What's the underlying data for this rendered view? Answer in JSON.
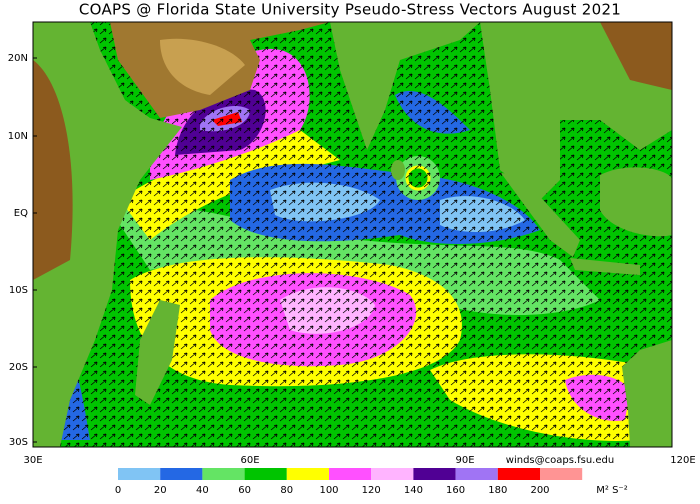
{
  "title": "COAPS @ Florida State University Pseudo-Stress Vectors August 2021",
  "map": {
    "lat_labels": [
      "20N",
      "10N",
      "EQ",
      "10S",
      "20S",
      "30S"
    ],
    "lon_labels": [
      "30E",
      "60E",
      "90E",
      "120E"
    ]
  },
  "colorbar": {
    "labels": [
      "0",
      "20",
      "40",
      "60",
      "80",
      "100",
      "120",
      "140",
      "160",
      "180",
      "200"
    ],
    "colors": [
      "#80c4f4",
      "#2468e4",
      "#64e464",
      "#00c400",
      "#ffff00",
      "#ff50ff",
      "#ffb4ff",
      "#500094",
      "#a074f4",
      "#ff0000",
      "#ff9494"
    ],
    "unit": "M² S⁻²"
  },
  "credit": "winds@coaps.fsu.edu"
}
